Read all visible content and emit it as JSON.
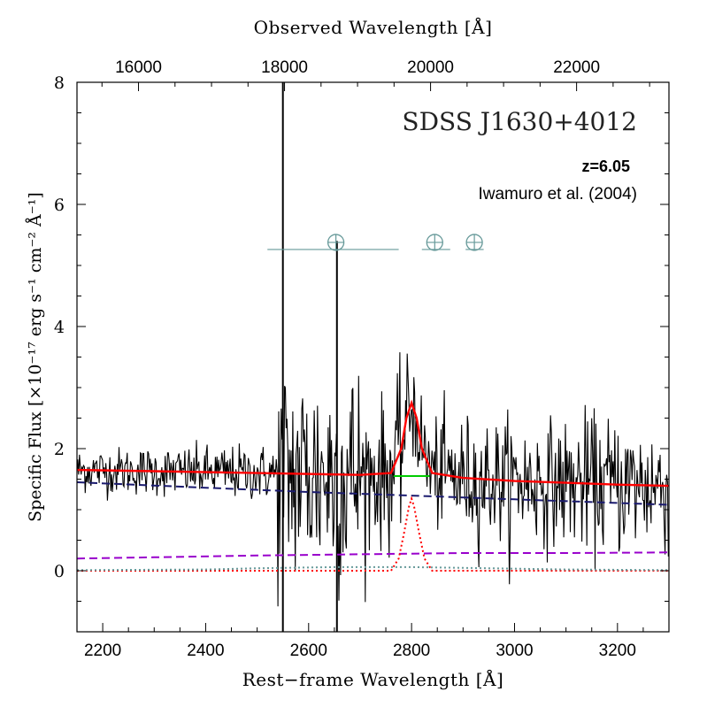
{
  "chart_data": {
    "type": "line",
    "title": "SDSS J1630+4012",
    "redshift_label": "z=6.05",
    "reference": "Iwamuro et al. (2004)",
    "xlabel": "Rest−frame Wavelength [Å]",
    "x2label": "Observed Wavelength [Å]",
    "ylabel": "Specific Flux [×10⁻¹⁷ erg s⁻¹ cm⁻² Å⁻¹]",
    "xlim": [
      2150,
      3300
    ],
    "ylim": [
      -1,
      8
    ],
    "x_ticks": [
      2200,
      2400,
      2600,
      2800,
      3000,
      3200
    ],
    "x_tick_labels": [
      "2200",
      "2400",
      "2600",
      "2800",
      "3000",
      "3200"
    ],
    "x2_ticks": [
      16000,
      18000,
      20000,
      22000
    ],
    "x2_tick_labels": [
      "16000",
      "18000",
      "20000",
      "22000"
    ],
    "y_ticks": [
      0,
      2,
      4,
      6,
      8
    ],
    "y_tick_labels": [
      "0",
      "2",
      "4",
      "6",
      "8"
    ],
    "vertical_line_x": 2550,
    "zero_level": 0,
    "telluric_symbols": [
      {
        "x": 2653,
        "y": 5.45,
        "range": [
          2520,
          2775
        ]
      },
      {
        "x": 2845,
        "y": 5.45,
        "range": [
          2820,
          2875
        ]
      },
      {
        "x": 2922,
        "y": 5.45,
        "range": [
          2905,
          2940
        ]
      }
    ],
    "series": [
      {
        "name": "observed spectrum",
        "style": "solid",
        "color": "#000000",
        "note": "noisy spectrum, mean follows total model"
      },
      {
        "name": "total model",
        "style": "solid",
        "color": "#ff0000",
        "x": [
          2150,
          2300,
          2500,
          2700,
          2760,
          2780,
          2790,
          2800,
          2810,
          2820,
          2840,
          2900,
          3000,
          3100,
          3200,
          3300
        ],
        "y": [
          1.65,
          1.63,
          1.6,
          1.57,
          1.6,
          2.0,
          2.5,
          2.75,
          2.5,
          2.0,
          1.6,
          1.52,
          1.47,
          1.44,
          1.41,
          1.39
        ]
      },
      {
        "name": "power-law continuum",
        "style": "dashed",
        "color": "#1a1a6e",
        "x": [
          2150,
          2400,
          2600,
          2800,
          3000,
          3300
        ],
        "y": [
          1.45,
          1.36,
          1.29,
          1.23,
          1.17,
          1.08
        ]
      },
      {
        "name": "Fe II template",
        "style": "dashed",
        "color": "#9900cc",
        "x": [
          2150,
          2300,
          2500,
          2700,
          2900,
          3100,
          3300
        ],
        "y": [
          0.2,
          0.22,
          0.25,
          0.27,
          0.29,
          0.29,
          0.3
        ]
      },
      {
        "name": "Mg II line component",
        "style": "dotted",
        "color": "#ff0000",
        "x": [
          2150,
          2760,
          2775,
          2785,
          2795,
          2800,
          2805,
          2815,
          2825,
          2840,
          3300
        ],
        "y": [
          0,
          0,
          0.2,
          0.6,
          1.05,
          1.18,
          1.05,
          0.6,
          0.2,
          0,
          0
        ]
      },
      {
        "name": "Balmer continuum",
        "style": "dotted",
        "color": "#669999",
        "x": [
          2150,
          2400,
          2500,
          2650,
          2800,
          2950,
          3100,
          3300
        ],
        "y": [
          0.01,
          0.02,
          0.04,
          0.06,
          0.06,
          0.04,
          0.02,
          0.01
        ]
      },
      {
        "name": "line continuum baseline",
        "style": "solid",
        "color": "#00cc00",
        "x": [
          2765,
          2835
        ],
        "y": [
          1.55,
          1.55
        ]
      }
    ]
  }
}
